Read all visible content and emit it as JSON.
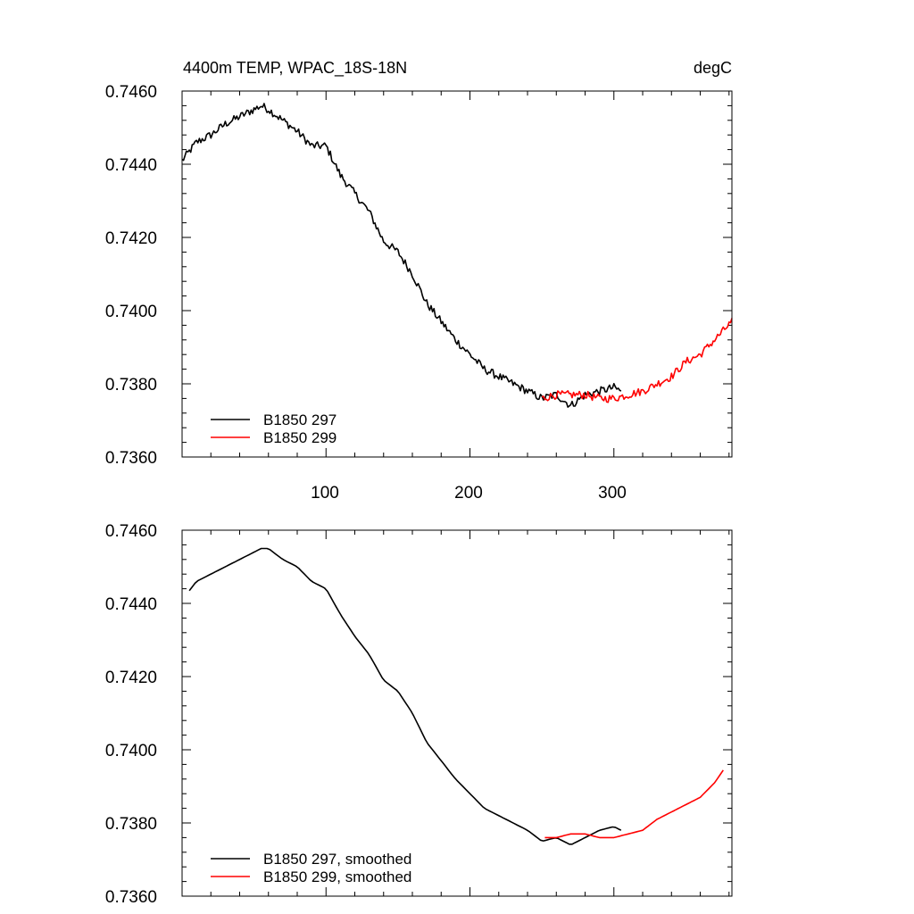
{
  "chart_data": [
    {
      "type": "line",
      "title_left": "4400m TEMP, WPAC_18S-18N",
      "title_right": "degC",
      "xlim": [
        0,
        382
      ],
      "ylim": [
        0.736,
        0.746
      ],
      "x_ticks": [
        100,
        200,
        300
      ],
      "x_tick_labels": [
        "100",
        "200",
        "300"
      ],
      "y_ticks": [
        0.736,
        0.738,
        0.74,
        0.742,
        0.744,
        0.746
      ],
      "y_tick_labels": [
        "0.7360",
        "0.7380",
        "0.7400",
        "0.7420",
        "0.7440",
        "0.7460"
      ],
      "legend_position": "bottom-left",
      "series": [
        {
          "name": "B1850 297",
          "color": "#000000",
          "noise": 0.00022,
          "x": [
            0,
            10,
            20,
            30,
            40,
            50,
            55,
            60,
            70,
            80,
            90,
            100,
            110,
            120,
            130,
            140,
            150,
            160,
            170,
            180,
            190,
            200,
            210,
            220,
            230,
            240,
            250,
            260,
            270,
            280,
            290,
            300,
            305
          ],
          "y": [
            0.7441,
            0.7446,
            0.7448,
            0.7451,
            0.7453,
            0.7455,
            0.7456,
            0.7455,
            0.7452,
            0.7449,
            0.7445,
            0.7445,
            0.7437,
            0.7432,
            0.7427,
            0.7419,
            0.7416,
            0.741,
            0.7402,
            0.7397,
            0.7392,
            0.7388,
            0.7384,
            0.7382,
            0.738,
            0.7378,
            0.7376,
            0.7377,
            0.7374,
            0.7377,
            0.7378,
            0.7379,
            0.7378
          ]
        },
        {
          "name": "B1850 299",
          "color": "#ff0000",
          "noise": 0.00022,
          "x": [
            250,
            260,
            270,
            280,
            290,
            300,
            310,
            320,
            330,
            340,
            350,
            360,
            370,
            382
          ],
          "y": [
            0.7376,
            0.7377,
            0.7377,
            0.7377,
            0.7376,
            0.7376,
            0.7377,
            0.7378,
            0.738,
            0.7382,
            0.7386,
            0.7388,
            0.7392,
            0.7397
          ]
        }
      ]
    },
    {
      "type": "line",
      "title_left": "",
      "title_right": "",
      "xlim": [
        0,
        382
      ],
      "ylim": [
        0.736,
        0.746
      ],
      "x_ticks": [
        100,
        200,
        300
      ],
      "x_tick_labels": [],
      "y_ticks": [
        0.736,
        0.738,
        0.74,
        0.742,
        0.744,
        0.746
      ],
      "y_tick_labels": [
        "0.7360",
        "0.7380",
        "0.7400",
        "0.7420",
        "0.7440",
        "0.7460"
      ],
      "legend_position": "bottom-left",
      "series": [
        {
          "name": "B1850 297, smoothed",
          "color": "#000000",
          "noise": 0,
          "x": [
            5,
            10,
            20,
            30,
            40,
            50,
            55,
            60,
            70,
            80,
            90,
            100,
            110,
            120,
            130,
            140,
            150,
            160,
            170,
            180,
            190,
            200,
            210,
            220,
            230,
            240,
            250,
            260,
            270,
            280,
            290,
            300,
            305
          ],
          "y": [
            0.74435,
            0.7446,
            0.7448,
            0.745,
            0.7452,
            0.7454,
            0.7455,
            0.7455,
            0.7452,
            0.745,
            0.7446,
            0.7444,
            0.7437,
            0.7431,
            0.7426,
            0.7419,
            0.7416,
            0.741,
            0.7402,
            0.7397,
            0.7392,
            0.7388,
            0.7384,
            0.7382,
            0.738,
            0.7378,
            0.7375,
            0.7376,
            0.7374,
            0.7376,
            0.7378,
            0.7379,
            0.7378
          ]
        },
        {
          "name": "B1850 299, smoothed",
          "color": "#ff0000",
          "noise": 0,
          "x": [
            252,
            260,
            270,
            280,
            290,
            300,
            310,
            320,
            330,
            340,
            350,
            360,
            370,
            377
          ],
          "y": [
            0.7376,
            0.7376,
            0.7377,
            0.7377,
            0.7376,
            0.7376,
            0.7377,
            0.7378,
            0.7381,
            0.7383,
            0.7385,
            0.7387,
            0.7391,
            0.7395
          ]
        }
      ]
    }
  ]
}
